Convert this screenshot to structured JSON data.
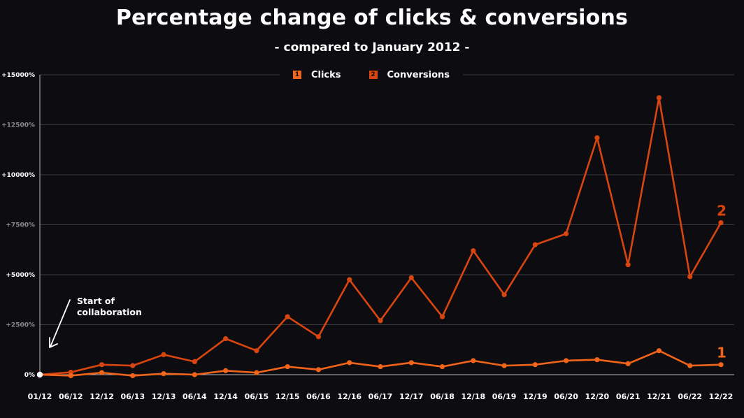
{
  "title": "Percentage change of clicks & conversions",
  "subtitle": "- compared to January 2012 -",
  "legend": {
    "items": [
      {
        "marker": "1",
        "label": "Clicks",
        "color": "#f26419"
      },
      {
        "marker": "2",
        "label": "Conversions",
        "color": "#d9450f"
      }
    ]
  },
  "annotation": {
    "line1": "Start of",
    "line2": "collaboration"
  },
  "colors": {
    "background": "#0d0d11",
    "clicks": "#f26419",
    "conversions": "#d9450f",
    "grid": "#3a3a3e",
    "zero_line": "#bbbbbb"
  },
  "chart_data": {
    "type": "line",
    "title": "Percentage change of clicks & conversions",
    "subtitle": "- compared to January 2012 -",
    "xlabel": "",
    "ylabel": "",
    "x": [
      "01/12",
      "06/12",
      "12/12",
      "06/13",
      "12/13",
      "06/14",
      "12/14",
      "06/15",
      "12/15",
      "06/16",
      "12/16",
      "06/17",
      "12/17",
      "06/18",
      "12/18",
      "06/19",
      "12/19",
      "06/20",
      "12/20",
      "06/21",
      "12/21",
      "06/22",
      "12/22"
    ],
    "ylim": [
      0,
      15000
    ],
    "yticks": [
      {
        "value": 0,
        "label": "0%"
      },
      {
        "value": 2500,
        "label": "+2500%"
      },
      {
        "value": 5000,
        "label": "+5000%"
      },
      {
        "value": 7500,
        "label": "+7500%"
      },
      {
        "value": 10000,
        "label": "+10000%"
      },
      {
        "value": 12500,
        "label": "+12500%"
      },
      {
        "value": 15000,
        "label": "+15000%"
      }
    ],
    "grid": true,
    "legend_position": "top",
    "series": [
      {
        "name": "Clicks",
        "end_label": "1",
        "values": [
          0,
          -50,
          100,
          -50,
          50,
          0,
          200,
          100,
          400,
          250,
          600,
          400,
          600,
          400,
          700,
          450,
          500,
          700,
          750,
          550,
          1200,
          450,
          500
        ]
      },
      {
        "name": "Conversions",
        "end_label": "2",
        "values": [
          0,
          120,
          500,
          450,
          1000,
          650,
          1800,
          1200,
          2900,
          1900,
          4750,
          2700,
          4850,
          2900,
          6200,
          4000,
          6500,
          7050,
          11850,
          5500,
          13850,
          4900,
          7600
        ]
      }
    ]
  }
}
